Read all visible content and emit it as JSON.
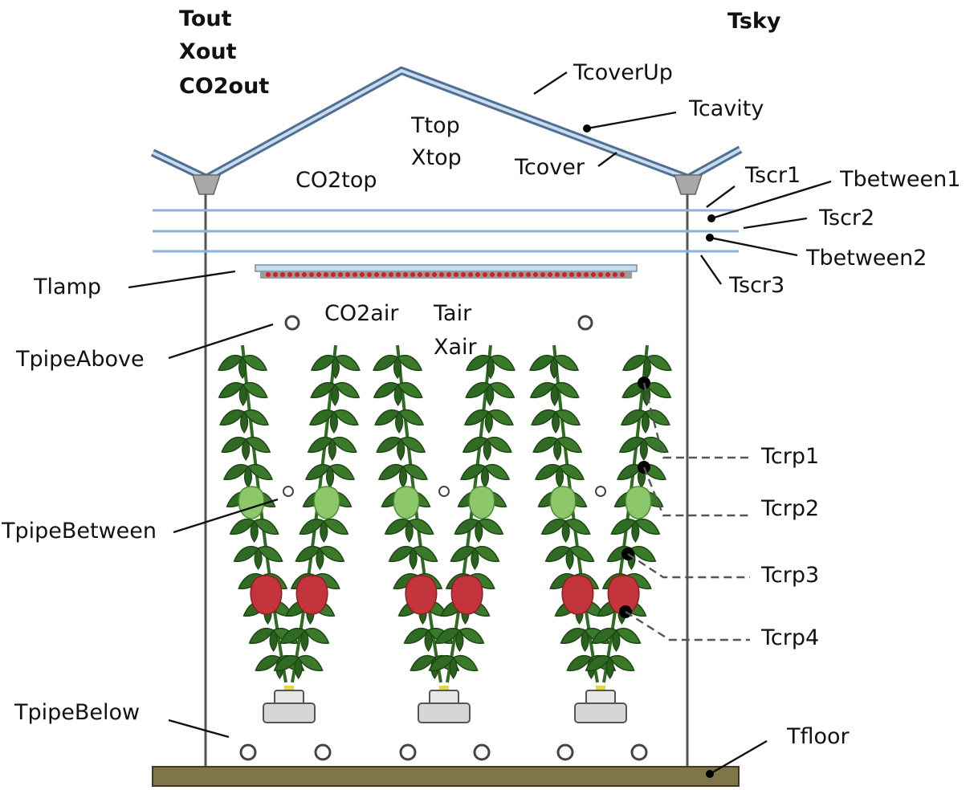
{
  "outside_labels": [
    "Tout",
    "Xout",
    "CO2out"
  ],
  "sky_label": "Tsky",
  "cover": {
    "cover_up": "TcoverUp",
    "cavity": "Tcavity",
    "cover": "Tcover"
  },
  "top_compartment": {
    "temperature": "Ttop",
    "humidity": "Xtop",
    "co2": "CO2top"
  },
  "screens": {
    "scr1": "Tscr1",
    "between1": "Tbetween1",
    "scr2": "Tscr2",
    "between2": "Tbetween2",
    "scr3": "Tscr3"
  },
  "lamp": "Tlamp",
  "air": {
    "co2": "CO2air",
    "temperature": "Tair",
    "humidity": "Xair"
  },
  "pipes": {
    "above": "TpipeAbove",
    "between": "TpipeBetween",
    "below": "TpipeBelow"
  },
  "crop_layers": [
    "Tcrp1",
    "Tcrp2",
    "Tcrp3",
    "Tcrp4"
  ],
  "floor": "Tfloor",
  "colors": {
    "cover_glass": "#7fa6cf",
    "screen_line": "#8fb2d6",
    "lamp_led": "#d42020",
    "leaf": "#2f6b22",
    "leaf_light": "#7fbf5a",
    "fruit": "#c4343c",
    "floor": "#7f7548",
    "pot": "#d6d6d6"
  }
}
